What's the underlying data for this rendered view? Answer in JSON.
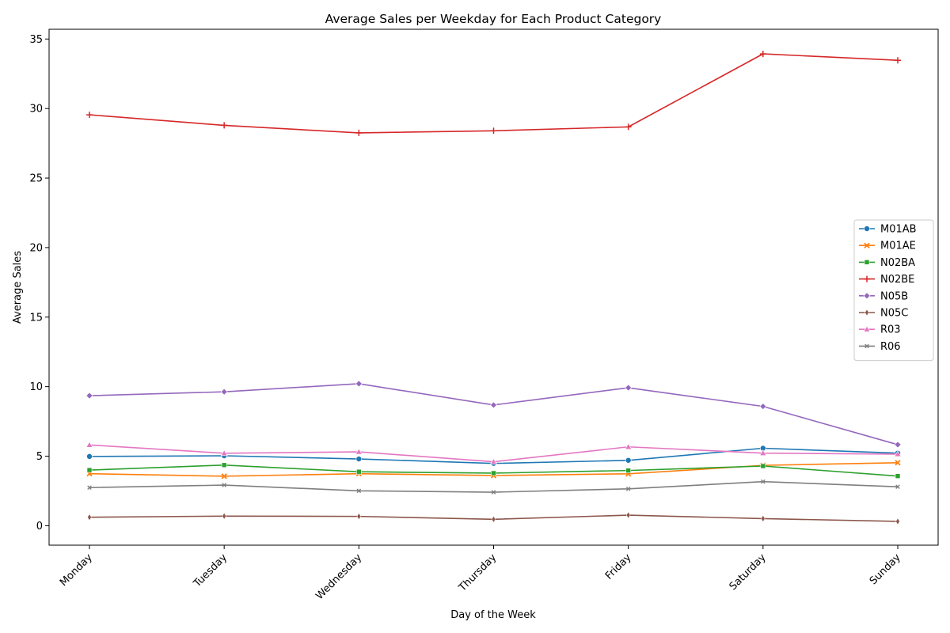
{
  "chart_data": {
    "type": "line",
    "title": "Average Sales per Weekday for Each Product Category",
    "xlabel": "Day of the Week",
    "ylabel": "Average Sales",
    "categories": [
      "Monday",
      "Tuesday",
      "Wednesday",
      "Thursday",
      "Friday",
      "Saturday",
      "Sunday"
    ],
    "ylim": [
      -1.4,
      35.7
    ],
    "yticks": [
      0,
      5,
      10,
      15,
      20,
      25,
      30,
      35
    ],
    "grid": false,
    "legend_position": "center-right",
    "series": [
      {
        "name": "M01AB",
        "color": "#1f77b4",
        "marker": "circle",
        "values": [
          4.98,
          5.03,
          4.8,
          4.48,
          4.7,
          5.57,
          5.22
        ]
      },
      {
        "name": "M01AE",
        "color": "#ff7f0e",
        "marker": "x",
        "values": [
          3.74,
          3.56,
          3.74,
          3.61,
          3.73,
          4.34,
          4.53
        ]
      },
      {
        "name": "N02BA",
        "color": "#2ca02c",
        "marker": "square",
        "values": [
          4.0,
          4.36,
          3.88,
          3.78,
          3.97,
          4.29,
          3.57
        ]
      },
      {
        "name": "N02BE",
        "color": "#d62728",
        "marker": "plus",
        "values": [
          29.55,
          28.79,
          28.25,
          28.4,
          28.68,
          33.93,
          33.47
        ]
      },
      {
        "name": "N05B",
        "color": "#9467bd",
        "marker": "diamond",
        "values": [
          9.35,
          9.63,
          10.21,
          8.68,
          9.92,
          8.58,
          5.83
        ]
      },
      {
        "name": "N05C",
        "color": "#8c564b",
        "marker": "thin-diamond",
        "values": [
          0.61,
          0.69,
          0.67,
          0.46,
          0.76,
          0.51,
          0.31
        ]
      },
      {
        "name": "R03",
        "color": "#e377c2",
        "marker": "triangle",
        "values": [
          5.81,
          5.21,
          5.31,
          4.6,
          5.67,
          5.22,
          5.15
        ]
      },
      {
        "name": "R06",
        "color": "#7f7f7f",
        "marker": "small-x",
        "values": [
          2.74,
          2.92,
          2.51,
          2.41,
          2.65,
          3.17,
          2.8
        ]
      }
    ]
  }
}
